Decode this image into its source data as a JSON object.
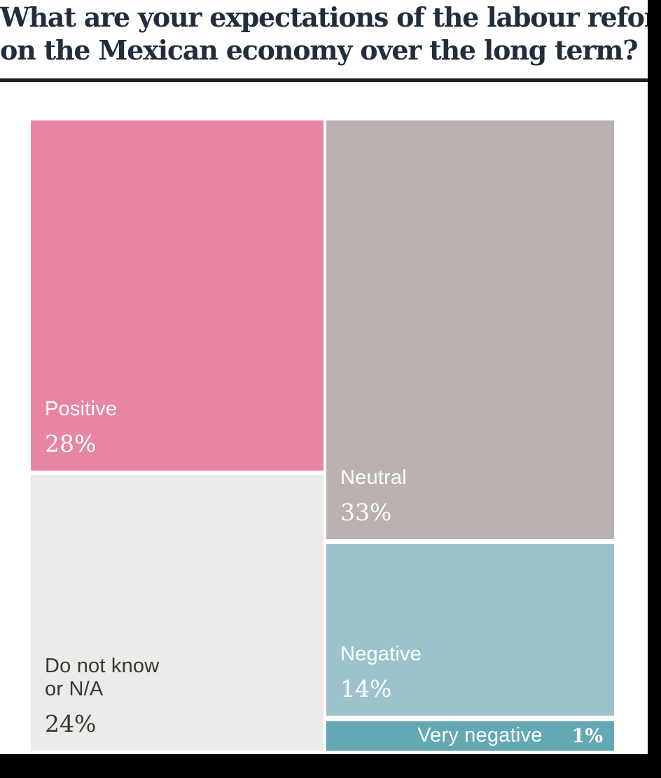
{
  "title": {
    "line1": "What are your expectations of the labour reform",
    "line2": "on the Mexican economy over the long term?",
    "color": "#1f2e3d"
  },
  "chart_data": {
    "type": "treemap",
    "title": "What are your expectations of the labour reform on the Mexican economy over the long term?",
    "unit": "%",
    "items": [
      {
        "id": "positive",
        "label": "Positive",
        "value": 28,
        "value_label": "28%",
        "color": "#e886a2",
        "text_color": "#ffffff"
      },
      {
        "id": "neutral",
        "label": "Neutral",
        "value": 33,
        "value_label": "33%",
        "color": "#bab1b0",
        "text_color": "#ffffff"
      },
      {
        "id": "negative",
        "label": "Negative",
        "value": 14,
        "value_label": "14%",
        "color": "#9cc3cd",
        "text_color": "#ffffff"
      },
      {
        "id": "very_negative",
        "label": "Very negative",
        "value": 1,
        "value_label": "1%",
        "color": "#63a8b3",
        "text_color": "#ffffff"
      },
      {
        "id": "do_not_know",
        "label": "Do not know or N/A",
        "label_line1": "Do not know",
        "label_line2": "or N/A",
        "value": 24,
        "value_label": "24%",
        "color": "#ebebe9",
        "text_color": "#3b3632"
      }
    ],
    "layout": "two columns: left column Positive above Do-not-know; right column Neutral, Negative, Very-negative; legend off; values labeled inside cells"
  }
}
